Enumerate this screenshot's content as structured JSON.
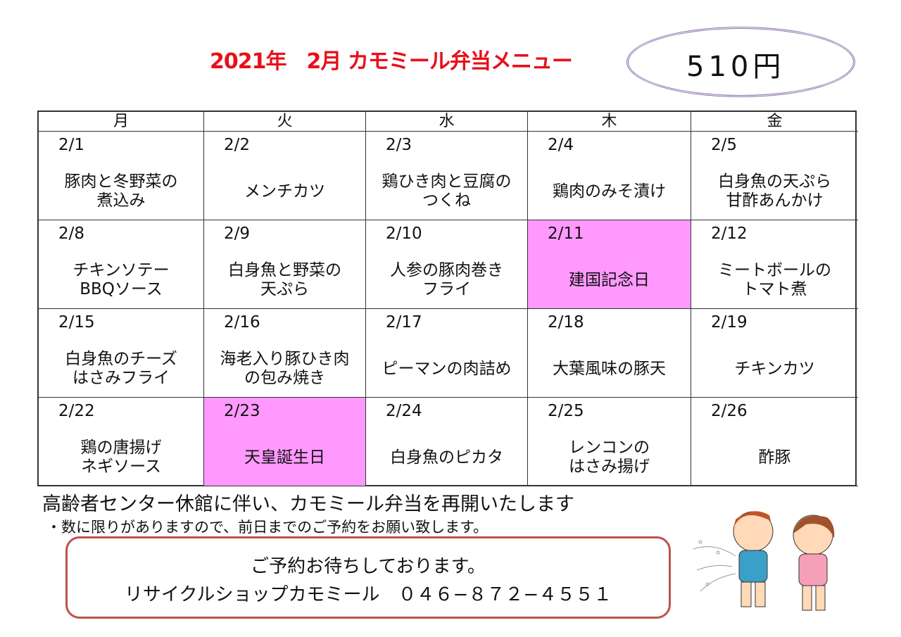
{
  "title": "2021年　2月 カモミール弁当メニュー",
  "price": "510円",
  "weekdays": [
    "月",
    "火",
    "水",
    "木",
    "金"
  ],
  "weeks": [
    [
      {
        "date": "2/1",
        "menu": "豚肉と冬野菜の\n煮込み"
      },
      {
        "date": "2/2",
        "menu": "メンチカツ"
      },
      {
        "date": "2/3",
        "menu": "鶏ひき肉と豆腐の\nつくね"
      },
      {
        "date": "2/4",
        "menu": "鶏肉のみそ漬け"
      },
      {
        "date": "2/5",
        "menu": "白身魚の天ぷら\n甘酢あんかけ"
      }
    ],
    [
      {
        "date": "2/8",
        "menu": "チキンソテー\nBBQソース"
      },
      {
        "date": "2/9",
        "menu": "白身魚と野菜の\n天ぷら"
      },
      {
        "date": "2/10",
        "menu": "人参の豚肉巻き\nフライ"
      },
      {
        "date": "2/11",
        "menu": "建国記念日",
        "holiday": true
      },
      {
        "date": "2/12",
        "menu": "ミートボールの\nトマト煮"
      }
    ],
    [
      {
        "date": "2/15",
        "menu": "白身魚のチーズ\nはさみフライ"
      },
      {
        "date": "2/16",
        "menu": "海老入り豚ひき肉\nの包み焼き"
      },
      {
        "date": "2/17",
        "menu": "ピーマンの肉詰め"
      },
      {
        "date": "2/18",
        "menu": "大葉風味の豚天"
      },
      {
        "date": "2/19",
        "menu": "チキンカツ"
      }
    ],
    [
      {
        "date": "2/22",
        "menu": "鶏の唐揚げ\nネギソース"
      },
      {
        "date": "2/23",
        "menu": "天皇誕生日",
        "holiday": true
      },
      {
        "date": "2/24",
        "menu": "白身魚のピカタ"
      },
      {
        "date": "2/25",
        "menu": "レンコンの\nはさみ揚げ"
      },
      {
        "date": "2/26",
        "menu": "酢豚"
      }
    ]
  ],
  "notes": {
    "line1": "高齢者センター休館に伴い、カモミール弁当を再開いたします",
    "line2": "・数に限りがありますので、前日までのご予約をお願い致します。"
  },
  "contact": {
    "line1": "ご予約お待ちしております。",
    "line2": "リサイクルショップカモミール　０４６−８７２−４５５１"
  },
  "colors": {
    "title": "#e8101a",
    "holiday": "#ff99ff",
    "box_border": "#c05050",
    "oval": "#8a6fb0"
  }
}
